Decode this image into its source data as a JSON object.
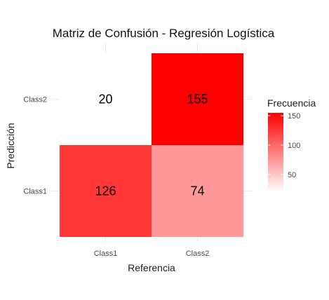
{
  "chart_data": {
    "type": "heatmap",
    "title": "Matriz de Confusión - Regresión Logística",
    "xlabel": "Referencia",
    "ylabel": "Predicción",
    "x_categories": [
      "Class1",
      "Class2"
    ],
    "y_categories": [
      "Class1",
      "Class2"
    ],
    "cells": [
      {
        "x": "Class1",
        "y": "Class1",
        "value": 126
      },
      {
        "x": "Class2",
        "y": "Class1",
        "value": 74
      },
      {
        "x": "Class1",
        "y": "Class2",
        "value": 20
      },
      {
        "x": "Class2",
        "y": "Class2",
        "value": 155
      }
    ],
    "legend": {
      "title": "Frecuencia",
      "ticks": [
        50,
        100,
        150
      ],
      "min": 20,
      "max": 155,
      "low_color": "#ffffff",
      "high_color": "#ff0000",
      "placement": "right"
    },
    "grid": true
  }
}
